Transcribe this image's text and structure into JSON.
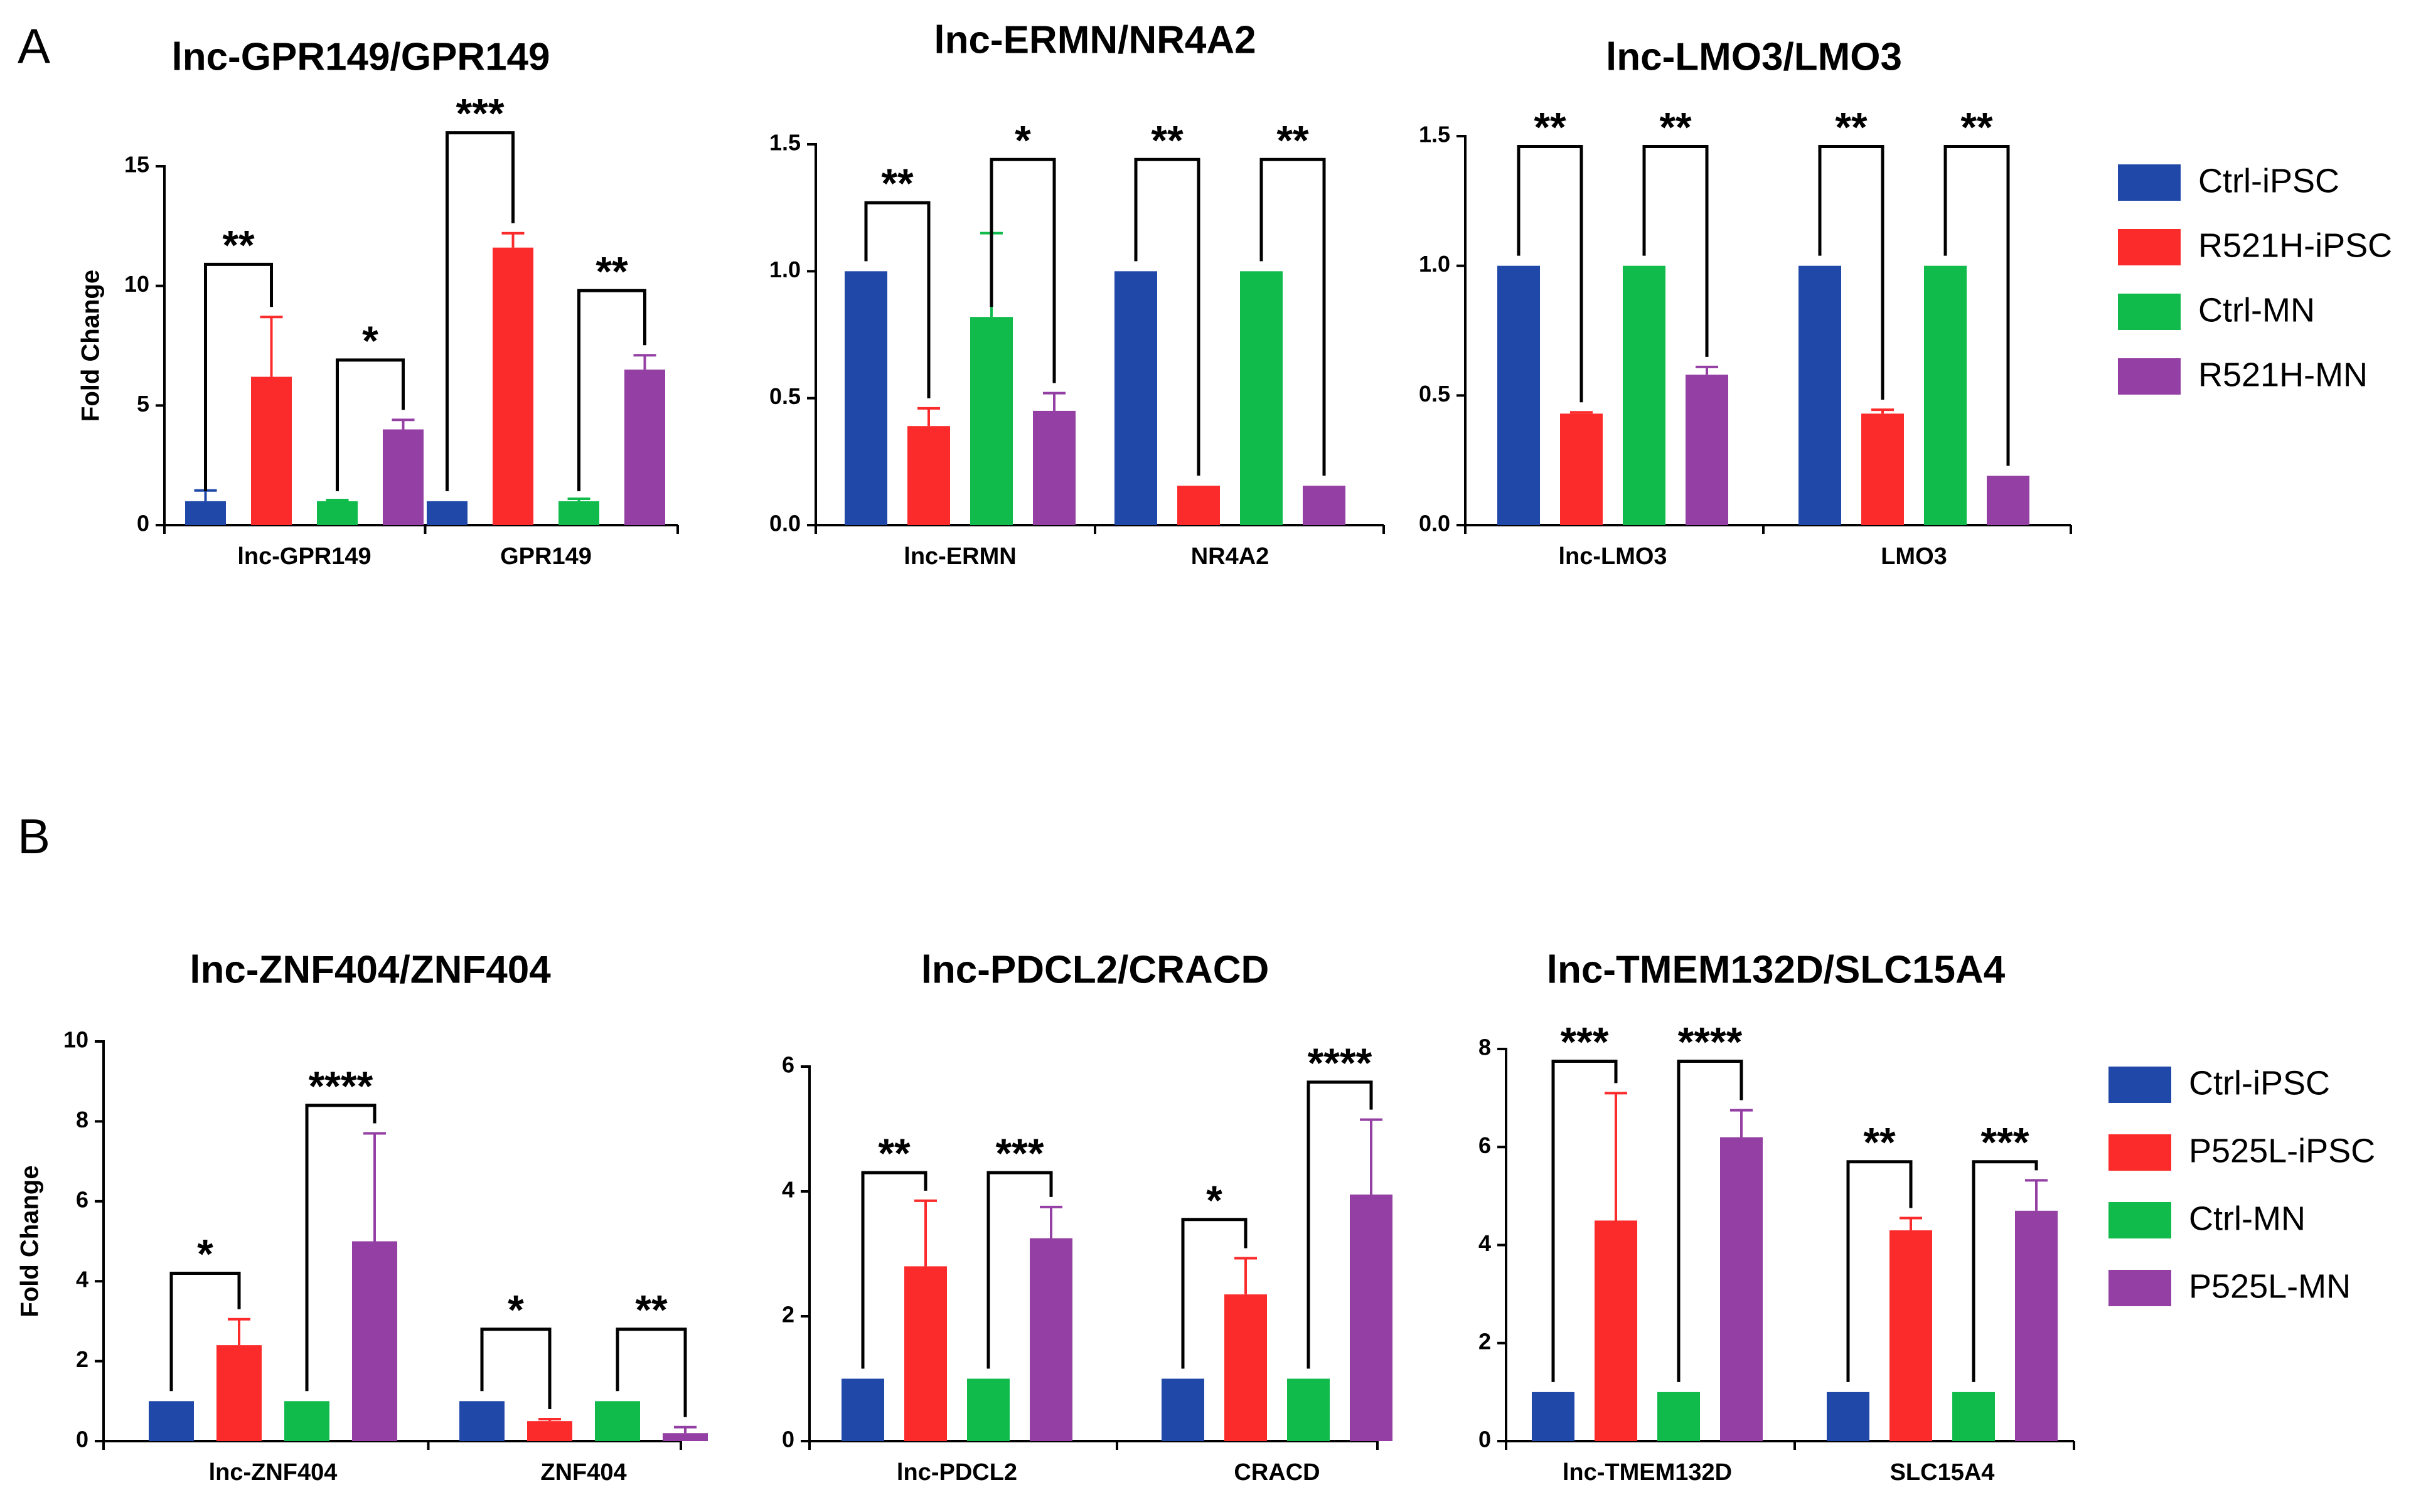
{
  "figure": {
    "panel_labels": [
      "A",
      "B"
    ],
    "colors": {
      "Ctrl-iPSC": "#1f48a8",
      "Mut-iPSC": "#fb2b2b",
      "Ctrl-MN": "#10bb4c",
      "Mut-MN": "#943fa3",
      "axis": "#000000"
    }
  },
  "legends": [
    {
      "panel": "A",
      "entries": [
        "Ctrl-iPSC",
        "R521H-iPSC",
        "Ctrl-MN",
        "R521H-MN"
      ]
    },
    {
      "panel": "B",
      "entries": [
        "Ctrl-iPSC",
        "P525L-iPSC",
        "Ctrl-MN",
        "P525L-MN"
      ]
    }
  ],
  "chart_data": [
    {
      "type": "bar",
      "panel": "A",
      "title": "lnc-GPR149/GPR149",
      "xlabel": "",
      "ylabel": "Fold Change",
      "ylim": [
        0,
        15
      ],
      "yticks": [
        0,
        5,
        10,
        15
      ],
      "ytick_labels": [
        "0",
        "5",
        "10",
        "15"
      ],
      "categories": [
        "lnc-GPR149",
        "GPR149"
      ],
      "series": [
        {
          "name": "Ctrl-iPSC",
          "values": [
            1.0,
            1.0
          ],
          "errors": [
            0.45,
            null
          ]
        },
        {
          "name": "R521H-iPSC",
          "values": [
            6.2,
            11.6
          ],
          "errors": [
            2.5,
            0.6
          ]
        },
        {
          "name": "Ctrl-MN",
          "values": [
            1.0,
            1.0
          ],
          "errors": [
            0.05,
            0.1
          ]
        },
        {
          "name": "R521H-MN",
          "values": [
            4.0,
            6.5
          ],
          "errors": [
            0.4,
            0.6
          ]
        }
      ],
      "significance": [
        {
          "group": 0,
          "from": 0,
          "to": 1,
          "label": "**",
          "y": 10.9
        },
        {
          "group": 0,
          "from": 2,
          "to": 3,
          "label": "*",
          "y": 6.9
        },
        {
          "group": 1,
          "from": 0,
          "to": 1,
          "label": "***",
          "y": 16.4
        },
        {
          "group": 1,
          "from": 2,
          "to": 3,
          "label": "**",
          "y": 9.8
        }
      ]
    },
    {
      "type": "bar",
      "panel": "A",
      "title": "lnc-ERMN/NR4A2",
      "xlabel": "",
      "ylabel": "",
      "ylim": [
        0,
        1.5
      ],
      "yticks": [
        0,
        0.5,
        1.0,
        1.5
      ],
      "ytick_labels": [
        "0.0",
        "0.5",
        "1.0",
        "1.5"
      ],
      "categories": [
        "lnc-ERMN",
        "NR4A2"
      ],
      "series": [
        {
          "name": "Ctrl-iPSC",
          "values": [
            1.0,
            1.0
          ],
          "errors": [
            null,
            null
          ]
        },
        {
          "name": "R521H-iPSC",
          "values": [
            0.39,
            0.155
          ],
          "errors": [
            0.07,
            null
          ]
        },
        {
          "name": "Ctrl-MN",
          "values": [
            0.82,
            1.0
          ],
          "errors": [
            0.33,
            null
          ]
        },
        {
          "name": "R521H-MN",
          "values": [
            0.45,
            0.155
          ],
          "errors": [
            0.07,
            null
          ]
        }
      ],
      "significance": [
        {
          "group": 0,
          "from": 0,
          "to": 1,
          "label": "**",
          "y": 1.27
        },
        {
          "group": 0,
          "from": 2,
          "to": 3,
          "label": "*",
          "y": 1.44
        },
        {
          "group": 1,
          "from": 0,
          "to": 1,
          "label": "**",
          "y": 1.44
        },
        {
          "group": 1,
          "from": 2,
          "to": 3,
          "label": "**",
          "y": 1.44
        }
      ]
    },
    {
      "type": "bar",
      "panel": "A",
      "title": "lnc-LMO3/LMO3",
      "xlabel": "",
      "ylabel": "",
      "ylim": [
        0,
        1.5
      ],
      "yticks": [
        0,
        0.5,
        1.0,
        1.5
      ],
      "ytick_labels": [
        "0.0",
        "0.5",
        "1.0",
        "1.5"
      ],
      "categories": [
        "lnc-LMO3",
        "LMO3"
      ],
      "series": [
        {
          "name": "Ctrl-iPSC",
          "values": [
            1.0,
            1.0
          ],
          "errors": [
            null,
            null
          ]
        },
        {
          "name": "R521H-iPSC",
          "values": [
            0.43,
            0.43
          ],
          "errors": [
            0.005,
            0.015
          ]
        },
        {
          "name": "Ctrl-MN",
          "values": [
            1.0,
            1.0
          ],
          "errors": [
            null,
            null
          ]
        },
        {
          "name": "R521H-MN",
          "values": [
            0.58,
            0.19
          ],
          "errors": [
            0.03,
            null
          ]
        }
      ],
      "significance": [
        {
          "group": 0,
          "from": 0,
          "to": 1,
          "label": "**",
          "y": 1.46
        },
        {
          "group": 0,
          "from": 2,
          "to": 3,
          "label": "**",
          "y": 1.46
        },
        {
          "group": 1,
          "from": 0,
          "to": 1,
          "label": "**",
          "y": 1.46
        },
        {
          "group": 1,
          "from": 2,
          "to": 3,
          "label": "**",
          "y": 1.46
        }
      ]
    },
    {
      "type": "bar",
      "panel": "B",
      "title": "lnc-ZNF404/ZNF404",
      "xlabel": "",
      "ylabel": "Fold Change",
      "ylim": [
        0,
        10
      ],
      "yticks": [
        0,
        2,
        4,
        6,
        8,
        10
      ],
      "ytick_labels": [
        "0",
        "2",
        "4",
        "6",
        "8",
        "10"
      ],
      "categories": [
        "lnc-ZNF404",
        "ZNF404"
      ],
      "series": [
        {
          "name": "Ctrl-iPSC",
          "values": [
            1.0,
            1.0
          ],
          "errors": [
            null,
            null
          ]
        },
        {
          "name": "P525L-iPSC",
          "values": [
            2.4,
            0.5
          ],
          "errors": [
            0.65,
            0.05
          ]
        },
        {
          "name": "Ctrl-MN",
          "values": [
            1.0,
            1.0
          ],
          "errors": [
            null,
            null
          ]
        },
        {
          "name": "P525L-MN",
          "values": [
            5.0,
            0.2
          ],
          "errors": [
            2.7,
            0.15
          ]
        }
      ],
      "significance": [
        {
          "group": 0,
          "from": 0,
          "to": 1,
          "label": "*",
          "y": 4.2
        },
        {
          "group": 0,
          "from": 2,
          "to": 3,
          "label": "****",
          "y": 8.4
        },
        {
          "group": 1,
          "from": 0,
          "to": 1,
          "label": "*",
          "y": 2.8
        },
        {
          "group": 1,
          "from": 2,
          "to": 3,
          "label": "**",
          "y": 2.8
        }
      ]
    },
    {
      "type": "bar",
      "panel": "B",
      "title": "lnc-PDCL2/CRACD",
      "xlabel": "",
      "ylabel": "",
      "ylim": [
        0,
        6
      ],
      "yticks": [
        0,
        2,
        4,
        6
      ],
      "ytick_labels": [
        "0",
        "2",
        "4",
        "6"
      ],
      "categories": [
        "lnc-PDCL2",
        "CRACD"
      ],
      "series": [
        {
          "name": "Ctrl-iPSC",
          "values": [
            1.0,
            1.0
          ],
          "errors": [
            null,
            null
          ]
        },
        {
          "name": "P525L-iPSC",
          "values": [
            2.8,
            2.35
          ],
          "errors": [
            1.05,
            0.58
          ]
        },
        {
          "name": "Ctrl-MN",
          "values": [
            1.0,
            1.0
          ],
          "errors": [
            null,
            null
          ]
        },
        {
          "name": "P525L-MN",
          "values": [
            3.25,
            3.95
          ],
          "errors": [
            0.5,
            1.2
          ]
        }
      ],
      "significance": [
        {
          "group": 0,
          "from": 0,
          "to": 1,
          "label": "**",
          "y": 4.3
        },
        {
          "group": 0,
          "from": 2,
          "to": 3,
          "label": "***",
          "y": 4.3
        },
        {
          "group": 1,
          "from": 0,
          "to": 1,
          "label": "*",
          "y": 3.55
        },
        {
          "group": 1,
          "from": 2,
          "to": 3,
          "label": "****",
          "y": 5.75
        }
      ]
    },
    {
      "type": "bar",
      "panel": "B",
      "title": "lnc-TMEM132D/SLC15A4",
      "xlabel": "",
      "ylabel": "",
      "ylim": [
        0,
        8
      ],
      "yticks": [
        0,
        2,
        4,
        6,
        8
      ],
      "ytick_labels": [
        "0",
        "2",
        "4",
        "6",
        "8"
      ],
      "categories": [
        "lnc-TMEM132D",
        "SLC15A4"
      ],
      "series": [
        {
          "name": "Ctrl-iPSC",
          "values": [
            1.0,
            1.0
          ],
          "errors": [
            null,
            null
          ]
        },
        {
          "name": "P525L-iPSC",
          "values": [
            4.5,
            4.3
          ],
          "errors": [
            2.6,
            0.25
          ]
        },
        {
          "name": "Ctrl-MN",
          "values": [
            1.0,
            1.0
          ],
          "errors": [
            null,
            null
          ]
        },
        {
          "name": "P525L-MN",
          "values": [
            6.2,
            4.7
          ],
          "errors": [
            0.55,
            0.62
          ]
        }
      ],
      "significance": [
        {
          "group": 0,
          "from": 0,
          "to": 1,
          "label": "***",
          "y": 7.75
        },
        {
          "group": 0,
          "from": 2,
          "to": 3,
          "label": "****",
          "y": 7.75
        },
        {
          "group": 1,
          "from": 0,
          "to": 1,
          "label": "**",
          "y": 5.7
        },
        {
          "group": 1,
          "from": 2,
          "to": 3,
          "label": "***",
          "y": 5.7
        }
      ]
    }
  ]
}
